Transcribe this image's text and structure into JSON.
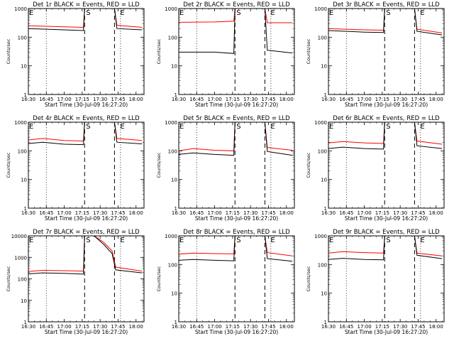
{
  "figure": {
    "xtick_labels": [
      "16:30",
      "16:45",
      "17:00",
      "17:15",
      "17:30",
      "17:45",
      "18:00"
    ],
    "ytick_labels": [
      "1",
      "10",
      "100",
      "1000"
    ],
    "ytick_labels_alt": [
      "1",
      "10",
      "100",
      "1000",
      "10000"
    ],
    "xlabel": "Start Time (30-Jul-09 16:27:20)",
    "ylabel": "Counts/sec",
    "markers": {
      "e": "E",
      "s": "S"
    },
    "colors": {
      "events": "#000000",
      "lld": "#ff0000"
    }
  },
  "chart_data": [
    {
      "type": "line",
      "title": "Det 1r BLACK = Events, RED = LLD",
      "xlabel": "Start Time (30-Jul-09 16:27:20)",
      "ylabel": "Counts/sec",
      "x_units": "minutes since 16:27:20 (axis 16:30-18:05)",
      "y_scale": "log",
      "ylim": [
        1,
        1000
      ],
      "event_lines": [
        {
          "type": "dotted",
          "time": "16:45"
        },
        {
          "type": "dashed",
          "time": "17:17",
          "label": "S"
        },
        {
          "type": "dashed",
          "time": "17:42",
          "label": "E"
        },
        {
          "type": "dotted",
          "time": "17:47"
        }
      ],
      "series": [
        {
          "name": "LLD",
          "color": "#ff0000",
          "points": [
            [
              "16:30",
              250
            ],
            [
              "17:00",
              230
            ],
            [
              "17:16",
              220
            ],
            [
              "17:17",
              1000
            ],
            [
              "17:23",
              1000
            ],
            [
              "17:42",
              1000
            ],
            [
              "17:44",
              260
            ],
            [
              "18:05",
              220
            ]
          ]
        },
        {
          "name": "Events",
          "color": "#000000",
          "points": [
            [
              "16:30",
              200
            ],
            [
              "17:00",
              180
            ],
            [
              "17:16",
              170
            ],
            [
              "17:17",
              1000
            ],
            [
              "17:23",
              1000
            ],
            [
              "17:42",
              1000
            ],
            [
              "17:44",
              200
            ],
            [
              "18:05",
              180
            ]
          ]
        }
      ]
    },
    {
      "type": "line",
      "title": "Det 2r BLACK = Events, RED = LLD",
      "xlabel": "Start Time (30-Jul-09 16:27:20)",
      "ylabel": "Counts/sec",
      "y_scale": "log",
      "ylim": [
        1,
        1000
      ],
      "event_lines": [
        {
          "type": "dotted",
          "time": "16:45"
        },
        {
          "type": "dashed",
          "time": "17:17",
          "label": "S"
        },
        {
          "type": "dashed",
          "time": "17:42",
          "label": "E"
        },
        {
          "type": "dotted",
          "time": "17:47"
        }
      ],
      "series": [
        {
          "name": "LLD",
          "color": "#ff0000",
          "points": [
            [
              "16:30",
              330
            ],
            [
              "17:00",
              340
            ],
            [
              "17:16",
              360
            ],
            [
              "17:17",
              1000
            ],
            [
              "17:23",
              1000
            ],
            [
              "17:42",
              1000
            ],
            [
              "17:44",
              320
            ],
            [
              "18:05",
              320
            ]
          ]
        },
        {
          "name": "Events",
          "color": "#000000",
          "points": [
            [
              "16:30",
              30
            ],
            [
              "17:00",
              30
            ],
            [
              "17:16",
              27
            ],
            [
              "17:17",
              1000
            ],
            [
              "17:23",
              1000
            ],
            [
              "17:42",
              1000
            ],
            [
              "17:44",
              35
            ],
            [
              "18:05",
              28
            ]
          ]
        }
      ]
    },
    {
      "type": "line",
      "title": "Det 3r BLACK = Events, RED = LLD",
      "xlabel": "Start Time (30-Jul-09 16:27:20)",
      "ylabel": "Counts/sec",
      "y_scale": "log",
      "ylim": [
        1,
        1000
      ],
      "event_lines": [
        {
          "type": "dotted",
          "time": "16:45"
        },
        {
          "type": "dashed",
          "time": "17:17",
          "label": "S"
        },
        {
          "type": "dashed",
          "time": "17:42",
          "label": "E"
        },
        {
          "type": "dotted",
          "time": "17:47"
        }
      ],
      "series": [
        {
          "name": "LLD",
          "color": "#ff0000",
          "points": [
            [
              "16:30",
              200
            ],
            [
              "17:00",
              180
            ],
            [
              "17:16",
              175
            ],
            [
              "17:17",
              1000
            ],
            [
              "17:23",
              1000
            ],
            [
              "17:42",
              1000
            ],
            [
              "17:44",
              190
            ],
            [
              "18:05",
              140
            ]
          ]
        },
        {
          "name": "Events",
          "color": "#000000",
          "points": [
            [
              "16:30",
              170
            ],
            [
              "17:00",
              150
            ],
            [
              "17:16",
              145
            ],
            [
              "17:17",
              1000
            ],
            [
              "17:23",
              1000
            ],
            [
              "17:42",
              1000
            ],
            [
              "17:44",
              160
            ],
            [
              "18:05",
              120
            ]
          ]
        }
      ]
    },
    {
      "type": "line",
      "title": "Det 4r BLACK = Events, RED = LLD",
      "xlabel": "Start Time (30-Jul-09 16:27:20)",
      "ylabel": "Counts/sec",
      "y_scale": "log",
      "ylim": [
        1,
        1000
      ],
      "event_lines": [
        {
          "type": "dotted",
          "time": "16:45"
        },
        {
          "type": "dashed",
          "time": "17:17",
          "label": "S"
        },
        {
          "type": "dashed",
          "time": "17:42",
          "label": "E"
        },
        {
          "type": "dotted",
          "time": "17:47"
        }
      ],
      "series": [
        {
          "name": "LLD",
          "color": "#ff0000",
          "points": [
            [
              "16:30",
              240
            ],
            [
              "16:42",
              270
            ],
            [
              "17:00",
              230
            ],
            [
              "17:16",
              220
            ],
            [
              "17:17",
              1000
            ],
            [
              "17:23",
              1000
            ],
            [
              "17:42",
              1000
            ],
            [
              "17:44",
              270
            ],
            [
              "18:05",
              230
            ]
          ]
        },
        {
          "name": "Events",
          "color": "#000000",
          "points": [
            [
              "16:30",
              180
            ],
            [
              "16:42",
              200
            ],
            [
              "17:00",
              170
            ],
            [
              "17:16",
              165
            ],
            [
              "17:17",
              1000
            ],
            [
              "17:23",
              1000
            ],
            [
              "17:42",
              1000
            ],
            [
              "17:44",
              200
            ],
            [
              "18:05",
              175
            ]
          ]
        }
      ]
    },
    {
      "type": "line",
      "title": "Det 5r BLACK = Events, RED = LLD",
      "xlabel": "Start Time (30-Jul-09 16:27:20)",
      "ylabel": "Counts/sec",
      "y_scale": "log",
      "ylim": [
        1,
        1000
      ],
      "event_lines": [
        {
          "type": "dotted",
          "time": "16:45"
        },
        {
          "type": "dashed",
          "time": "17:17",
          "label": "S"
        },
        {
          "type": "dashed",
          "time": "17:42",
          "label": "E"
        },
        {
          "type": "dotted",
          "time": "17:47"
        }
      ],
      "series": [
        {
          "name": "LLD",
          "color": "#ff0000",
          "points": [
            [
              "16:30",
              100
            ],
            [
              "16:42",
              120
            ],
            [
              "17:00",
              105
            ],
            [
              "17:16",
              100
            ],
            [
              "17:17",
              1000
            ],
            [
              "17:23",
              1000
            ],
            [
              "17:42",
              1000
            ],
            [
              "17:44",
              130
            ],
            [
              "18:05",
              105
            ]
          ]
        },
        {
          "name": "Events",
          "color": "#000000",
          "points": [
            [
              "16:30",
              75
            ],
            [
              "16:42",
              85
            ],
            [
              "17:00",
              75
            ],
            [
              "17:16",
              70
            ],
            [
              "17:17",
              1000
            ],
            [
              "17:23",
              1000
            ],
            [
              "17:42",
              1000
            ],
            [
              "17:44",
              95
            ],
            [
              "18:05",
              70
            ]
          ]
        }
      ]
    },
    {
      "type": "line",
      "title": "Det 6r BLACK = Events, RED = LLD",
      "xlabel": "Start Time (30-Jul-09 16:27:20)",
      "ylabel": "Counts/sec",
      "y_scale": "log",
      "ylim": [
        1,
        1000
      ],
      "event_lines": [
        {
          "type": "dotted",
          "time": "16:45"
        },
        {
          "type": "dashed",
          "time": "17:17",
          "label": "S"
        },
        {
          "type": "dashed",
          "time": "17:42",
          "label": "E"
        },
        {
          "type": "dotted",
          "time": "17:47"
        }
      ],
      "series": [
        {
          "name": "LLD",
          "color": "#ff0000",
          "points": [
            [
              "16:30",
              190
            ],
            [
              "16:42",
              210
            ],
            [
              "17:00",
              190
            ],
            [
              "17:16",
              180
            ],
            [
              "17:17",
              1000
            ],
            [
              "17:23",
              1000
            ],
            [
              "17:42",
              1000
            ],
            [
              "17:44",
              220
            ],
            [
              "18:05",
              170
            ]
          ]
        },
        {
          "name": "Events",
          "color": "#000000",
          "points": [
            [
              "16:30",
              120
            ],
            [
              "16:42",
              135
            ],
            [
              "17:00",
              120
            ],
            [
              "17:16",
              115
            ],
            [
              "17:17",
              1000
            ],
            [
              "17:23",
              1000
            ],
            [
              "17:42",
              1000
            ],
            [
              "17:44",
              150
            ],
            [
              "18:05",
              120
            ]
          ]
        }
      ]
    },
    {
      "type": "line",
      "title": "Det 7r BLACK = Events, RED = LLD",
      "xlabel": "Start Time (30-Jul-09 16:27:20)",
      "ylabel": "Counts/sec",
      "y_scale": "log",
      "ylim": [
        1,
        10000
      ],
      "event_lines": [
        {
          "type": "dotted",
          "time": "16:45"
        },
        {
          "type": "dashed",
          "time": "17:17",
          "label": "S"
        },
        {
          "type": "dashed",
          "time": "17:42",
          "label": "E"
        },
        {
          "type": "dotted",
          "time": "17:47"
        }
      ],
      "series": [
        {
          "name": "LLD",
          "color": "#ff0000",
          "points": [
            [
              "16:30",
              220
            ],
            [
              "16:42",
              250
            ],
            [
              "17:00",
              240
            ],
            [
              "17:16",
              230
            ],
            [
              "17:17",
              10000
            ],
            [
              "17:25",
              10000
            ],
            [
              "17:33",
              5000
            ],
            [
              "17:40",
              2000
            ],
            [
              "17:43",
              350
            ],
            [
              "18:05",
              230
            ]
          ]
        },
        {
          "name": "Events",
          "color": "#000000",
          "points": [
            [
              "16:30",
              170
            ],
            [
              "16:42",
              190
            ],
            [
              "17:00",
              180
            ],
            [
              "17:16",
              165
            ],
            [
              "17:17",
              10000
            ],
            [
              "17:25",
              10000
            ],
            [
              "17:33",
              4000
            ],
            [
              "17:40",
              1500
            ],
            [
              "17:43",
              260
            ],
            [
              "18:05",
              190
            ]
          ]
        }
      ]
    },
    {
      "type": "line",
      "title": "Det 8r BLACK = Events, RED = LLD",
      "xlabel": "Start Time (30-Jul-09 16:27:20)",
      "ylabel": "Counts/sec",
      "y_scale": "log",
      "ylim": [
        1,
        1000
      ],
      "event_lines": [
        {
          "type": "dotted",
          "time": "16:45"
        },
        {
          "type": "dashed",
          "time": "17:17",
          "label": "S"
        },
        {
          "type": "dashed",
          "time": "17:42",
          "label": "E"
        },
        {
          "type": "dotted",
          "time": "17:47"
        }
      ],
      "series": [
        {
          "name": "LLD",
          "color": "#ff0000",
          "points": [
            [
              "16:30",
              230
            ],
            [
              "16:42",
              250
            ],
            [
              "17:00",
              240
            ],
            [
              "17:16",
              235
            ],
            [
              "17:17",
              1000
            ],
            [
              "17:23",
              1000
            ],
            [
              "17:42",
              1000
            ],
            [
              "17:44",
              260
            ],
            [
              "18:05",
              200
            ]
          ]
        },
        {
          "name": "Events",
          "color": "#000000",
          "points": [
            [
              "16:30",
              140
            ],
            [
              "16:42",
              150
            ],
            [
              "17:00",
              140
            ],
            [
              "17:16",
              135
            ],
            [
              "17:17",
              1000
            ],
            [
              "17:23",
              1000
            ],
            [
              "17:42",
              1000
            ],
            [
              "17:44",
              160
            ],
            [
              "18:05",
              130
            ]
          ]
        }
      ]
    },
    {
      "type": "line",
      "title": "Det 9r BLACK = Events, RED = LLD",
      "xlabel": "Start Time (30-Jul-09 16:27:20)",
      "ylabel": "Counts/sec",
      "y_scale": "log",
      "ylim": [
        1,
        1000
      ],
      "event_lines": [
        {
          "type": "dotted",
          "time": "16:45"
        },
        {
          "type": "dashed",
          "time": "17:17",
          "label": "S"
        },
        {
          "type": "dashed",
          "time": "17:42",
          "label": "E"
        },
        {
          "type": "dotted",
          "time": "17:47"
        }
      ],
      "series": [
        {
          "name": "LLD",
          "color": "#ff0000",
          "points": [
            [
              "16:30",
              250
            ],
            [
              "16:42",
              280
            ],
            [
              "17:00",
              260
            ],
            [
              "17:16",
              250
            ],
            [
              "17:17",
              1000
            ],
            [
              "17:23",
              1000
            ],
            [
              "17:42",
              1000
            ],
            [
              "17:44",
              250
            ],
            [
              "18:05",
              200
            ]
          ]
        },
        {
          "name": "Events",
          "color": "#000000",
          "points": [
            [
              "16:30",
              150
            ],
            [
              "16:42",
              165
            ],
            [
              "17:00",
              150
            ],
            [
              "17:16",
              145
            ],
            [
              "17:17",
              1000
            ],
            [
              "17:23",
              1000
            ],
            [
              "17:42",
              1000
            ],
            [
              "17:44",
              210
            ],
            [
              "18:05",
              160
            ]
          ]
        }
      ]
    }
  ]
}
